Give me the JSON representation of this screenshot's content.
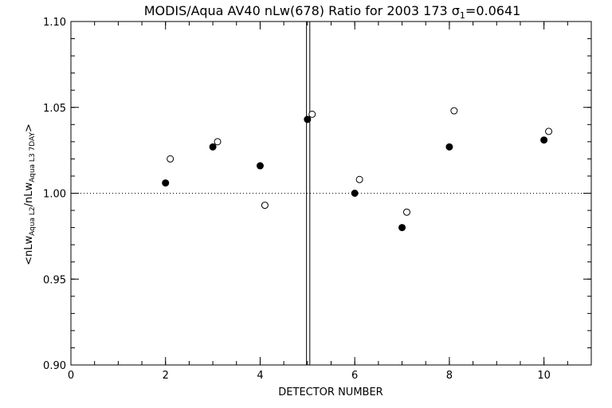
{
  "chart_data": {
    "type": "scatter",
    "title": {
      "main": "MODIS/Aqua AV40 nLw(678) Ratio for 2003 173 ",
      "sigma_symbol": "σ",
      "sigma_sub": "1",
      "sigma_value": "=0.0641"
    },
    "xlabel": "DETECTOR NUMBER",
    "ylabel": {
      "prefix": "<nLw",
      "sub1": "Aqua L2",
      "mid": "/nLw",
      "sub2": "Aqua L3 7DAY",
      "suffix": ">"
    },
    "xlim": [
      0,
      11
    ],
    "ylim": [
      0.9,
      1.1
    ],
    "x_ticks": [
      0,
      2,
      4,
      6,
      8,
      10
    ],
    "x_tick_labels": [
      "0",
      "2",
      "4",
      "6",
      "8",
      "10"
    ],
    "x_minor_step": 0.5,
    "y_ticks": [
      0.9,
      0.95,
      1.0,
      1.05,
      1.1
    ],
    "y_tick_labels": [
      "0.90",
      "0.95",
      "1.00",
      "1.05",
      "1.10"
    ],
    "y_minor_step": 0.01,
    "reference_line_y": 1.0,
    "vertical_lines_x": [
      4.98,
      5.05
    ],
    "series": [
      {
        "marker": "filled-circle",
        "points": [
          [
            2.0,
            1.006
          ],
          [
            3.0,
            1.027
          ],
          [
            4.0,
            1.016
          ],
          [
            5.0,
            1.043
          ],
          [
            6.0,
            1.0
          ],
          [
            7.0,
            0.98
          ],
          [
            8.0,
            1.027
          ],
          [
            10.0,
            1.031
          ]
        ]
      },
      {
        "marker": "open-circle",
        "points": [
          [
            2.1,
            1.02
          ],
          [
            3.1,
            1.03
          ],
          [
            4.1,
            0.993
          ],
          [
            5.1,
            1.046
          ],
          [
            6.1,
            1.008
          ],
          [
            7.1,
            0.989
          ],
          [
            8.1,
            1.048
          ],
          [
            10.1,
            1.036
          ]
        ]
      }
    ],
    "grid": false,
    "legend": "none"
  }
}
